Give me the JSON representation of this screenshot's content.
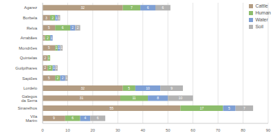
{
  "chart_data": {
    "type": "bar",
    "orientation": "horizontal",
    "stacked": true,
    "data_labels": true,
    "grid": true,
    "legend": "top-right",
    "categories": [
      "Agarez",
      "Borbela",
      "Relva",
      "Arrabães",
      "Mondrões",
      "Quintelas",
      "Guilpilhares",
      "Sapiões",
      "Lordelo",
      "Galegos da Serra",
      "Sinarelhos",
      "Vila Marim"
    ],
    "series": [
      {
        "name": "Cattle",
        "color": "#b39c82",
        "values": [
          32,
          3,
          5,
          1,
          5,
          2,
          2,
          5,
          32,
          31,
          55,
          9
        ]
      },
      {
        "name": "Human",
        "color": "#8dbd6c",
        "values": [
          7,
          2,
          6,
          2,
          1,
          1,
          2,
          2,
          5,
          11,
          17,
          6
        ]
      },
      {
        "name": "Water",
        "color": "#7e9fd4",
        "values": [
          6,
          1,
          2,
          1,
          1,
          null,
          1,
          2,
          10,
          8,
          5,
          4
        ]
      },
      {
        "name": "Soil",
        "color": "#b3b3b3",
        "values": [
          6,
          1,
          2,
          null,
          1,
          null,
          1,
          1,
          9,
          10,
          7,
          6
        ]
      }
    ],
    "xlim": [
      0,
      90
    ],
    "xticks": [
      0,
      10,
      20,
      30,
      40,
      50,
      60,
      70,
      80,
      90
    ]
  }
}
